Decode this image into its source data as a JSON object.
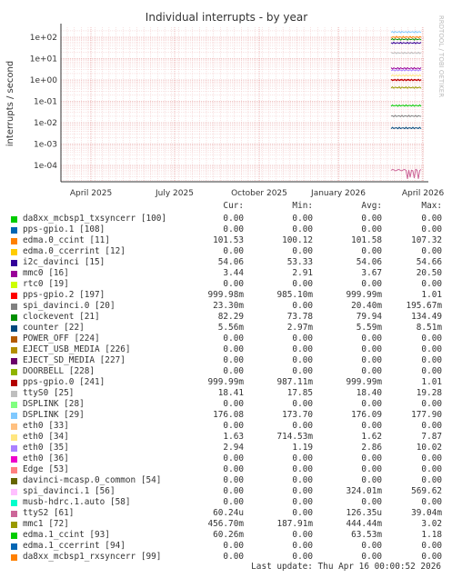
{
  "chart_data": {
    "type": "line",
    "title": "Individual interrupts - by year",
    "ylabel": "interrupts / second",
    "side_label": "RRDTOOL / TOBI OETIKER",
    "y_scale": "log",
    "ylim": [
      1e-05,
      1000
    ],
    "y_ticks": [
      "1e+02",
      "1e+01",
      "1e+00",
      "1e-01",
      "1e-02",
      "1e-03",
      "1e-04"
    ],
    "x_ticks": [
      "April 2025",
      "July 2025",
      "October 2025",
      "January 2026",
      "April 2026"
    ],
    "grid": true,
    "series": [
      {
        "name": "da8xx_mcbsp1_txsyncerr [100]",
        "color": "#00cc00",
        "cur": "0.00",
        "min": "0.00",
        "avg": "0.00",
        "max": "0.00",
        "level": null
      },
      {
        "name": "pps-gpio.1 [108]",
        "color": "#0066b3",
        "cur": "0.00",
        "min": "0.00",
        "avg": "0.00",
        "max": "0.00",
        "level": null
      },
      {
        "name": "edma.0_ccint [11]",
        "color": "#ff8000",
        "cur": "101.53",
        "min": "100.12",
        "avg": "101.58",
        "max": "107.32",
        "level": 101.5
      },
      {
        "name": "edma.0_ccerrint [12]",
        "color": "#ffcc00",
        "cur": "0.00",
        "min": "0.00",
        "avg": "0.00",
        "max": "0.00",
        "level": null
      },
      {
        "name": "i2c_davinci [15]",
        "color": "#330099",
        "cur": "54.06",
        "min": "53.33",
        "avg": "54.06",
        "max": "54.66",
        "level": 54.06
      },
      {
        "name": "mmc0 [16]",
        "color": "#990099",
        "cur": "3.44",
        "min": "2.91",
        "avg": "3.67",
        "max": "20.50",
        "level": 3.5
      },
      {
        "name": "rtc0 [19]",
        "color": "#ccff00",
        "cur": "0.00",
        "min": "0.00",
        "avg": "0.00",
        "max": "0.00",
        "level": null
      },
      {
        "name": "pps-gpio.2 [197]",
        "color": "#ff0000",
        "cur": "999.98m",
        "min": "985.10m",
        "avg": "999.99m",
        "max": "1.01",
        "level": 1.0
      },
      {
        "name": "spi_davinci.0 [20]",
        "color": "#808080",
        "cur": "23.30m",
        "min": "0.00",
        "avg": "20.40m",
        "max": "195.67m",
        "level": 0.0204
      },
      {
        "name": "clockevent [21]",
        "color": "#008f00",
        "cur": "82.29",
        "min": "73.78",
        "avg": "79.94",
        "max": "134.49",
        "level": 80
      },
      {
        "name": "counter [22]",
        "color": "#00487d",
        "cur": "5.56m",
        "min": "2.97m",
        "avg": "5.59m",
        "max": "8.51m",
        "level": 0.0056
      },
      {
        "name": "POWER_OFF [224]",
        "color": "#b35a00",
        "cur": "0.00",
        "min": "0.00",
        "avg": "0.00",
        "max": "0.00",
        "level": null
      },
      {
        "name": "EJECT_USB_MEDIA [226]",
        "color": "#b38f00",
        "cur": "0.00",
        "min": "0.00",
        "avg": "0.00",
        "max": "0.00",
        "level": null
      },
      {
        "name": "EJECT_SD_MEDIA [227]",
        "color": "#6b006b",
        "cur": "0.00",
        "min": "0.00",
        "avg": "0.00",
        "max": "0.00",
        "level": null
      },
      {
        "name": "DOORBELL [228]",
        "color": "#8fb300",
        "cur": "0.00",
        "min": "0.00",
        "avg": "0.00",
        "max": "0.00",
        "level": null
      },
      {
        "name": "pps-gpio.0 [241]",
        "color": "#b30000",
        "cur": "999.99m",
        "min": "987.11m",
        "avg": "999.99m",
        "max": "1.01",
        "level": 1.0
      },
      {
        "name": "ttyS0 [25]",
        "color": "#bebebe",
        "cur": "18.41",
        "min": "17.85",
        "avg": "18.40",
        "max": "19.28",
        "level": 18.4
      },
      {
        "name": "DSPLINK [28]",
        "color": "#80ff80",
        "cur": "0.00",
        "min": "0.00",
        "avg": "0.00",
        "max": "0.00",
        "level": null
      },
      {
        "name": "DSPLINK [29]",
        "color": "#80c9ff",
        "cur": "176.08",
        "min": "173.70",
        "avg": "176.09",
        "max": "177.90",
        "level": 176
      },
      {
        "name": "eth0 [33]",
        "color": "#ffc080",
        "cur": "0.00",
        "min": "0.00",
        "avg": "0.00",
        "max": "0.00",
        "level": null
      },
      {
        "name": "eth0 [34]",
        "color": "#ffe680",
        "cur": "1.63",
        "min": "714.53m",
        "avg": "1.62",
        "max": "7.87",
        "level": 1.62
      },
      {
        "name": "eth0 [35]",
        "color": "#aa80ff",
        "cur": "2.94",
        "min": "1.19",
        "avg": "2.86",
        "max": "10.02",
        "level": 2.86
      },
      {
        "name": "eth0 [36]",
        "color": "#ee00cc",
        "cur": "0.00",
        "min": "0.00",
        "avg": "0.00",
        "max": "0.00",
        "level": null
      },
      {
        "name": "Edge [53]",
        "color": "#ff8080",
        "cur": "0.00",
        "min": "0.00",
        "avg": "0.00",
        "max": "0.00",
        "level": null
      },
      {
        "name": "davinci-mcasp.0_common [54]",
        "color": "#666600",
        "cur": "0.00",
        "min": "0.00",
        "avg": "0.00",
        "max": "0.00",
        "level": null
      },
      {
        "name": "spi_davinci.1 [56]",
        "color": "#ffbfff",
        "cur": "0.00",
        "min": "0.00",
        "avg": "324.01m",
        "max": "569.62",
        "level": null
      },
      {
        "name": "musb-hdrc.1.auto [58]",
        "color": "#00ffcc",
        "cur": "0.00",
        "min": "0.00",
        "avg": "0.00",
        "max": "0.00",
        "level": null
      },
      {
        "name": "ttyS2 [61]",
        "color": "#cc6699",
        "cur": "60.24u",
        "min": "0.00",
        "avg": "126.35u",
        "max": "39.04m",
        "level": 6e-05
      },
      {
        "name": "mmc1 [72]",
        "color": "#999900",
        "cur": "456.70m",
        "min": "187.91m",
        "avg": "444.44m",
        "max": "3.02",
        "level": 0.44
      },
      {
        "name": "edma.1_ccint [93]",
        "color": "#00cc00",
        "cur": "60.26m",
        "min": "0.00",
        "avg": "63.53m",
        "max": "1.18",
        "level": 0.063
      },
      {
        "name": "edma.1_ccerrint [94]",
        "color": "#0066b3",
        "cur": "0.00",
        "min": "0.00",
        "avg": "0.00",
        "max": "0.00",
        "level": null
      },
      {
        "name": "da8xx_mcbsp1_rxsyncerr [99]",
        "color": "#ff8000",
        "cur": "0.00",
        "min": "0.00",
        "avg": "0.00",
        "max": "0.00",
        "level": null
      }
    ]
  },
  "legend": {
    "headers": {
      "cur": "Cur:",
      "min": "Min:",
      "avg": "Avg:",
      "max": "Max:"
    }
  },
  "footer": {
    "last_update": "Last update: Thu Apr 16 00:00:52 2026"
  }
}
